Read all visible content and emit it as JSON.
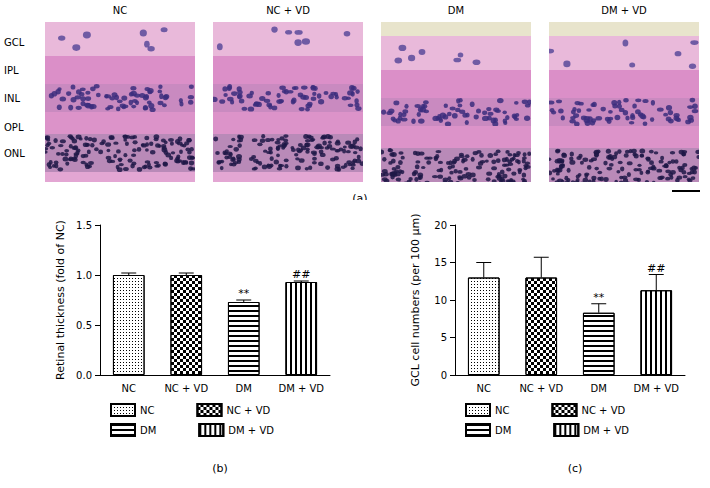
{
  "panel_a": {
    "label": "(a)",
    "columns": [
      "NC",
      "NC + VD",
      "DM",
      "DM + VD"
    ],
    "layers": [
      "GCL",
      "IPL",
      "INL",
      "OPL",
      "ONL"
    ]
  },
  "chart_data": [
    {
      "type": "bar",
      "title": "(b)",
      "ylabel": "Retinal thickness (fold of NC)",
      "categories": [
        "NC",
        "NC + VD",
        "DM",
        "DM + VD"
      ],
      "values": [
        1.0,
        1.0,
        0.73,
        0.93
      ],
      "errors": [
        0.02,
        0.02,
        0.02,
        0.01
      ],
      "annotations": [
        {
          "category": "DM",
          "text": "**"
        },
        {
          "category": "DM + VD",
          "text": "##"
        }
      ],
      "ylim": [
        0,
        1.5
      ],
      "yticks": [
        {
          "value": 0,
          "label": "0.0"
        },
        {
          "value": 0.5,
          "label": "0.5"
        },
        {
          "value": 1,
          "label": "1.0"
        },
        {
          "value": 1.5,
          "label": "1.5"
        }
      ],
      "grid": false,
      "legend": "bottom",
      "color": "#000000"
    },
    {
      "type": "bar",
      "title": "(c)",
      "ylabel": "GCL cell numbers (per 100 μm)",
      "categories": [
        "NC",
        "NC + VD",
        "DM",
        "DM + VD"
      ],
      "values": [
        13,
        13,
        8.3,
        11.3
      ],
      "errors": [
        2,
        2.7,
        1.2,
        2.1
      ],
      "annotations": [
        {
          "category": "DM",
          "text": "**"
        },
        {
          "category": "DM + VD",
          "text": "##"
        }
      ],
      "ylim": [
        0,
        20
      ],
      "yticks": [
        0,
        5,
        10,
        15,
        20
      ],
      "grid": false,
      "legend": "bottom",
      "color": "#000000"
    }
  ]
}
